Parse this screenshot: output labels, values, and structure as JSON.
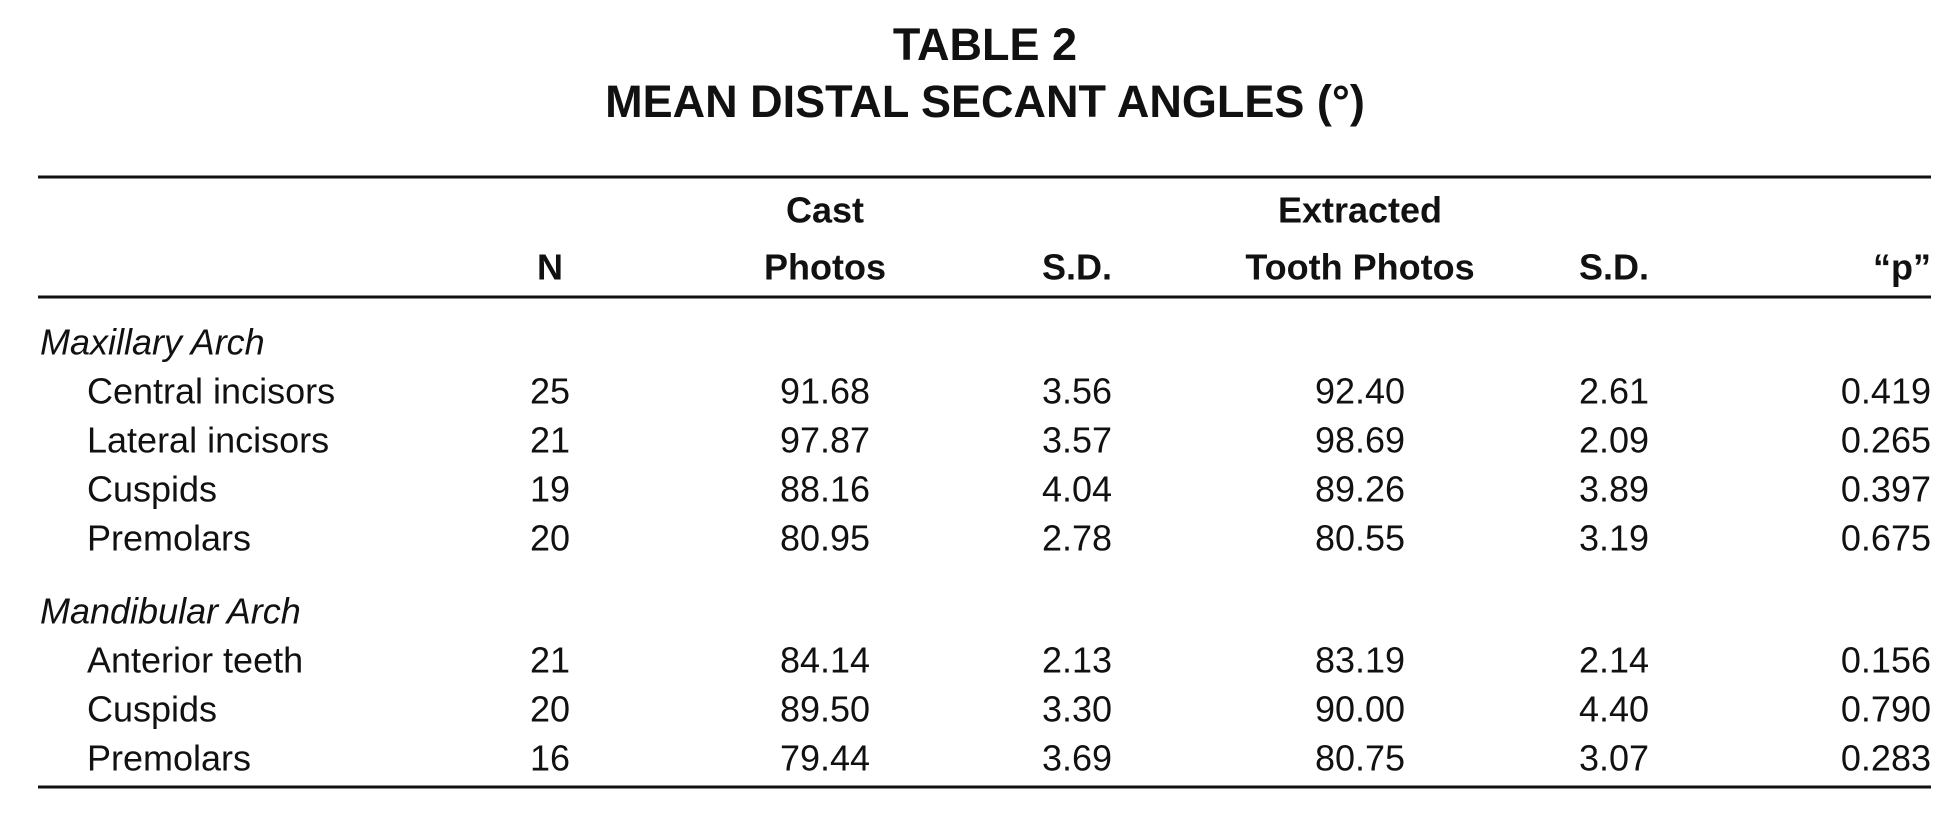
{
  "title": [
    "TABLE 2",
    "MEAN DISTAL SECANT ANGLES (°)"
  ],
  "table": {
    "columns": [
      {
        "label": "N"
      },
      {
        "label_top": "Cast",
        "label": "Photos"
      },
      {
        "label": "S.D."
      },
      {
        "label_top": "Extracted",
        "label": "Tooth Photos"
      },
      {
        "label": "S.D."
      },
      {
        "label": "“p”"
      }
    ],
    "groups": [
      {
        "name": "Maxillary Arch",
        "rows": [
          {
            "label": "Central incisors",
            "cells": [
              "25",
              "91.68",
              "3.56",
              "92.40",
              "2.61",
              "0.419"
            ]
          },
          {
            "label": "Lateral incisors",
            "cells": [
              "21",
              "97.87",
              "3.57",
              "98.69",
              "2.09",
              "0.265"
            ]
          },
          {
            "label": "Cuspids",
            "cells": [
              "19",
              "88.16",
              "4.04",
              "89.26",
              "3.89",
              "0.397"
            ]
          },
          {
            "label": "Premolars",
            "cells": [
              "20",
              "80.95",
              "2.78",
              "80.55",
              "3.19",
              "0.675"
            ]
          }
        ]
      },
      {
        "name": "Mandibular Arch",
        "rows": [
          {
            "label": "Anterior teeth",
            "cells": [
              "21",
              "84.14",
              "2.13",
              "83.19",
              "2.14",
              "0.156"
            ]
          },
          {
            "label": "Cuspids",
            "cells": [
              "20",
              "89.50",
              "3.30",
              "90.00",
              "4.40",
              "0.790"
            ]
          },
          {
            "label": "Premolars",
            "cells": [
              "16",
              "79.44",
              "3.69",
              "80.75",
              "3.07",
              "0.283"
            ]
          }
        ]
      }
    ]
  }
}
